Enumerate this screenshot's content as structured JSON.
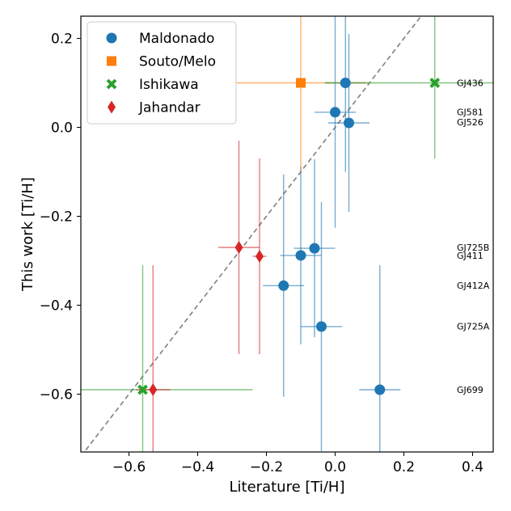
{
  "chart_data": {
    "type": "scatter",
    "xlabel": "Literature [Ti/H]",
    "ylabel": "This work [Ti/H]",
    "xlim": [
      -0.74,
      0.46
    ],
    "ylim": [
      -0.73,
      0.25
    ],
    "xticks": [
      -0.6,
      -0.4,
      -0.2,
      0.0,
      0.2,
      0.4
    ],
    "xtick_labels": [
      "−0.6",
      "−0.4",
      "−0.2",
      "0.0",
      "0.2",
      "0.4"
    ],
    "yticks": [
      0.2,
      0.0,
      -0.2,
      -0.4,
      -0.6
    ],
    "ytick_labels": [
      "0.2",
      "0.0",
      "−0.2",
      "−0.4",
      "−0.6"
    ],
    "one_to_one_line": true,
    "legend_position": "upper-left",
    "grid": false,
    "series": [
      {
        "name": "Maldonado",
        "color": "#1f77b4",
        "marker": "circle",
        "points": [
          {
            "x": 0.03,
            "y": 0.1,
            "xerr": 0.06,
            "yerr": 0.2
          },
          {
            "x": 0.0,
            "y": 0.034,
            "xerr": 0.06,
            "yerr": 0.26
          },
          {
            "x": 0.04,
            "y": 0.01,
            "xerr": 0.06,
            "yerr": 0.2
          },
          {
            "x": -0.06,
            "y": -0.272,
            "xerr": 0.06,
            "yerr": 0.2
          },
          {
            "x": -0.1,
            "y": -0.288,
            "xerr": 0.06,
            "yerr": 0.2
          },
          {
            "x": -0.15,
            "y": -0.356,
            "xerr": 0.06,
            "yerr": 0.25
          },
          {
            "x": -0.04,
            "y": -0.448,
            "xerr": 0.06,
            "yerr": 0.28
          },
          {
            "x": 0.13,
            "y": -0.59,
            "xerr": 0.06,
            "yerr": 0.28
          }
        ]
      },
      {
        "name": "Souto/Melo",
        "color": "#ff7f0e",
        "marker": "square",
        "points": [
          {
            "x": -0.1,
            "y": 0.1,
            "xerr": 0.2,
            "yerr": 0.2
          }
        ]
      },
      {
        "name": "Ishikawa",
        "color": "#2ca02c",
        "marker": "x",
        "points": [
          {
            "x": 0.29,
            "y": 0.1,
            "xerr": 0.32,
            "yerr": 0.17
          },
          {
            "x": -0.56,
            "y": -0.59,
            "xerr": 0.32,
            "yerr": 0.28
          }
        ]
      },
      {
        "name": "Jahandar",
        "color": "#d62728",
        "marker": "diamond",
        "points": [
          {
            "x": -0.28,
            "y": -0.27,
            "xerr": 0.06,
            "yerr": 0.24
          },
          {
            "x": -0.22,
            "y": -0.29,
            "xerr": 0.02,
            "yerr": 0.22
          },
          {
            "x": -0.53,
            "y": -0.59,
            "xerr": 0.05,
            "yerr": 0.28
          }
        ]
      }
    ],
    "star_labels": [
      {
        "name": "GJ436",
        "y": 0.1
      },
      {
        "name": "GJ581",
        "y": 0.035
      },
      {
        "name": "GJ526",
        "y": 0.012
      },
      {
        "name": "GJ725B",
        "y": -0.27
      },
      {
        "name": "GJ411",
        "y": -0.288
      },
      {
        "name": "GJ412A",
        "y": -0.355
      },
      {
        "name": "GJ725A",
        "y": -0.447
      },
      {
        "name": "GJ699",
        "y": -0.59
      }
    ]
  }
}
